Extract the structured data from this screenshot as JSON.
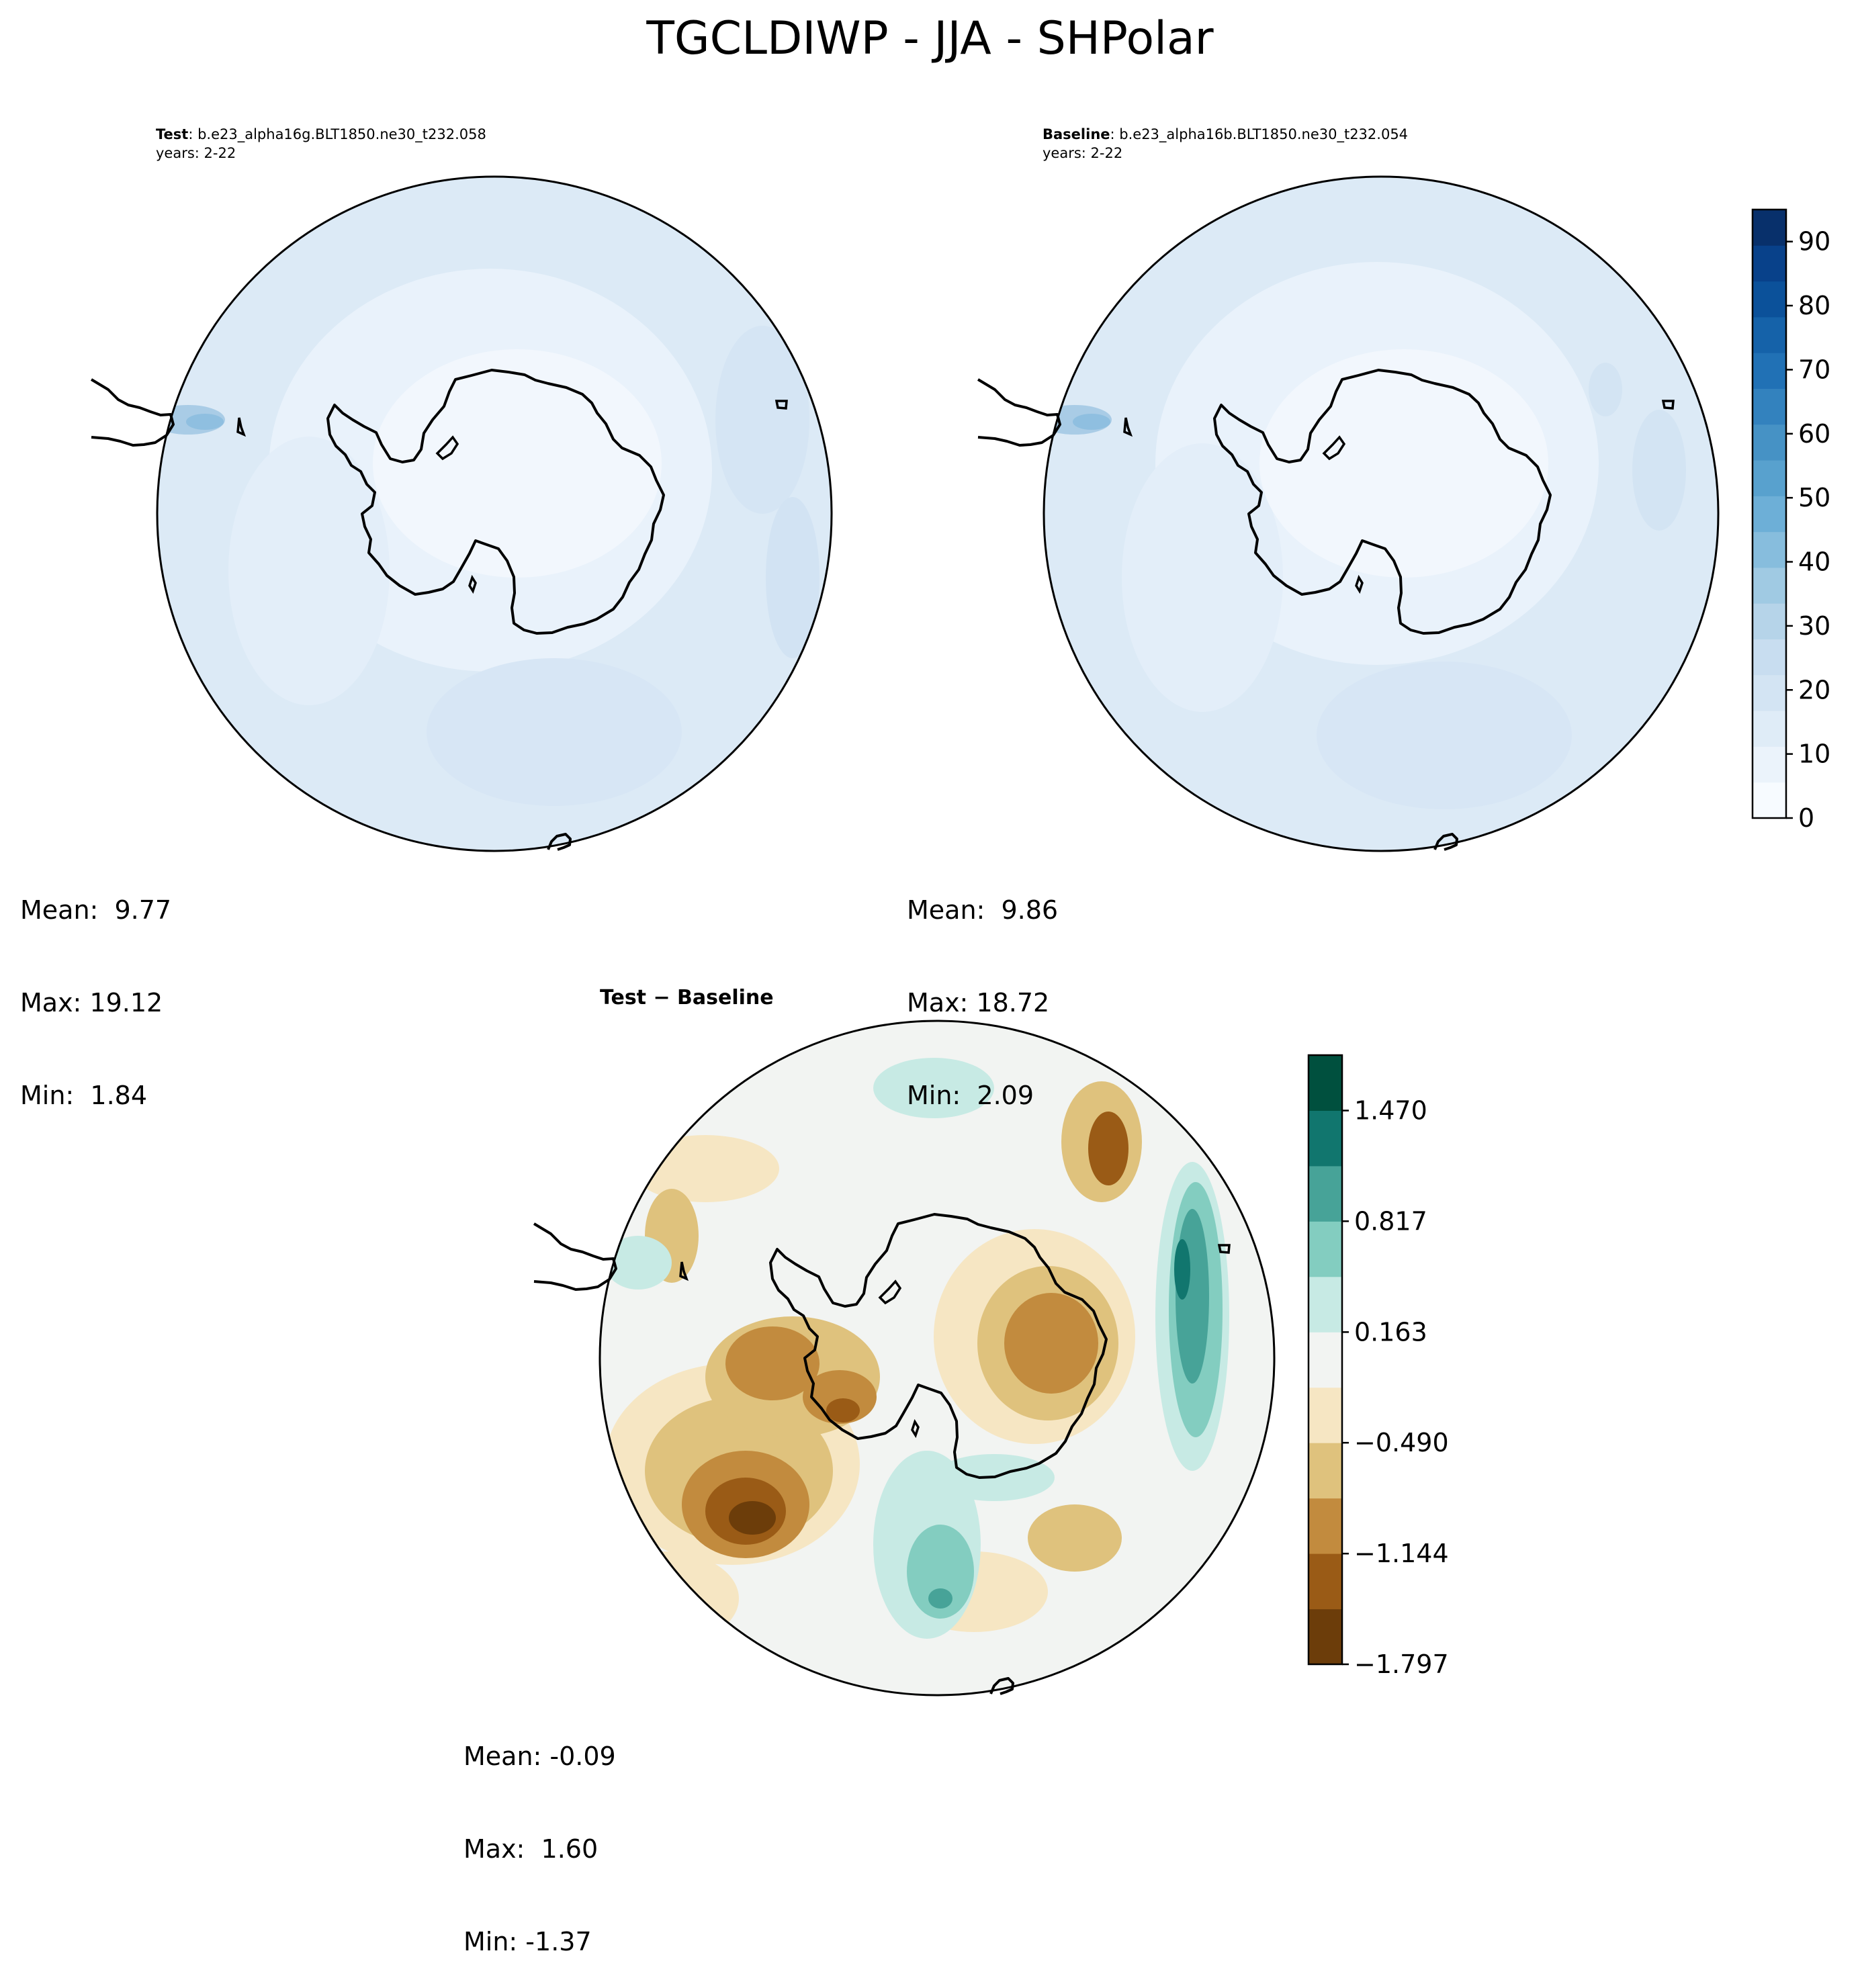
{
  "title": "TGCLDIWP - JJA - SHPolar",
  "panels": [
    {
      "id": "test",
      "label": "Test",
      "case_name": ": b.e23_alpha16g.BLT1850.ne30_t232.058",
      "years": "years: 2-22",
      "mean": "Mean:  9.77",
      "max": "Max: 19.12",
      "min": "Min:  1.84"
    },
    {
      "id": "baseline",
      "label": "Baseline",
      "case_name": ": b.e23_alpha16b.BLT1850.ne30_t232.054",
      "years": "years: 2-22",
      "mean": "Mean:  9.86",
      "max": "Max: 18.72",
      "min": "Min:  2.09"
    },
    {
      "id": "difference",
      "label": "Test − Baseline",
      "mean": "Mean: -0.09",
      "max": "Max:  1.60",
      "min": "Min: -1.37"
    }
  ],
  "colorbars": {
    "main": {
      "colormap": "Blues",
      "range": [
        0,
        95
      ],
      "ticks": [
        "0",
        "10",
        "20",
        "30",
        "40",
        "50",
        "60",
        "70",
        "80",
        "90"
      ],
      "colors": [
        "#f7fbff",
        "#ebf3fb",
        "#dfecf7",
        "#d3e4f3",
        "#c8ddf0",
        "#b6d4e9",
        "#a0cae3",
        "#87bddd",
        "#6dafd7",
        "#58a1ce",
        "#4692c5",
        "#3382be",
        "#2171b5",
        "#1562a9",
        "#0b519a",
        "#08418a",
        "#08306b"
      ]
    },
    "difference": {
      "colormap": "BrBG",
      "range": [
        -1.797,
        1.797
      ],
      "ticks": [
        "−1.797",
        "−1.144",
        "−0.490",
        "0.163",
        "0.817",
        "1.470"
      ],
      "colors": [
        "#6c3d0a",
        "#9a5b16",
        "#c28b3e",
        "#dfc27d",
        "#f6e6c3",
        "#f2f4f2",
        "#c7eae4",
        "#83cdc0",
        "#47a398",
        "#11766e",
        "#00503e"
      ]
    }
  }
}
